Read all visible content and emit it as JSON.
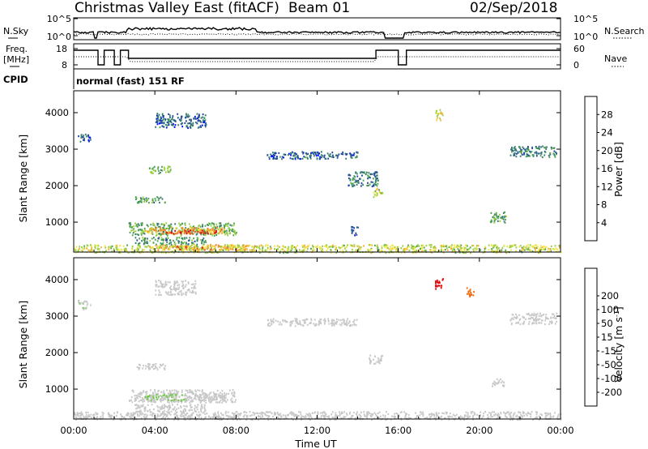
{
  "header": {
    "title": "Christmas Valley East (fitACF)",
    "beam": "Beam 01",
    "date": "02/Sep/2018",
    "cpid_label": "CPID",
    "cpid_value": "normal (fast) 151 RF"
  },
  "noise_panel": {
    "left_label": "N.Sky",
    "right_label": "N.Search",
    "left_ticks": [
      "10^5",
      "10^0"
    ],
    "right_ticks": [
      "10^5",
      "10^0"
    ]
  },
  "freq_panel": {
    "left_label_1": "Freq.",
    "left_label_2": "[MHz]",
    "right_label": "Nave",
    "left_ticks": [
      18,
      8
    ],
    "right_ticks": [
      60,
      0
    ]
  },
  "colors": {
    "power_scale": [
      "#0016ff",
      "#234b9c",
      "#3a7e6e",
      "#4fa651",
      "#9ccf40",
      "#f0e64a",
      "#f5b23a",
      "#f07f2a",
      "#e04a1c",
      "#d10d0d"
    ],
    "velocity_scale": [
      "#e30000",
      "#f06a12",
      "#f5a421",
      "#f6d23b",
      "#c8c8c8",
      "#c8c8c8",
      "#73c84a",
      "#41923c",
      "#1f3f9a",
      "#0b1fb8"
    ]
  },
  "chart_data": [
    {
      "type": "heatmap",
      "name": "power",
      "xlabel": "",
      "ylabel": "Slant Range [km]",
      "x_range": [
        0,
        24
      ],
      "ylim": [
        180,
        4600
      ],
      "y_ticks": [
        1000,
        2000,
        3000,
        4000
      ],
      "colorbar": {
        "label": "Power [dB]",
        "range": [
          0,
          32
        ],
        "ticks": [
          4,
          8,
          12,
          16,
          20,
          24,
          28
        ]
      },
      "regions": [
        {
          "x": [
            0.2,
            0.8
          ],
          "y": [
            3200,
            3450
          ],
          "value": 6
        },
        {
          "x": [
            2.7,
            8.0
          ],
          "y": [
            650,
            1000
          ],
          "value": 12
        },
        {
          "x": [
            3.5,
            7.5
          ],
          "y": [
            700,
            870
          ],
          "value": 22
        },
        {
          "x": [
            4.5,
            7.0
          ],
          "y": [
            700,
            800
          ],
          "value": 28
        },
        {
          "x": [
            3.0,
            6.5
          ],
          "y": [
            400,
            600
          ],
          "value": 10
        },
        {
          "x": [
            4.0,
            9.0
          ],
          "y": [
            250,
            400
          ],
          "value": 22
        },
        {
          "x": [
            5.0,
            6.5
          ],
          "y": [
            260,
            360
          ],
          "value": 28
        },
        {
          "x": [
            0.0,
            24.0
          ],
          "y": [
            180,
            400
          ],
          "value": 16
        },
        {
          "x": [
            3.0,
            4.5
          ],
          "y": [
            1550,
            1720
          ],
          "value": 10
        },
        {
          "x": [
            3.7,
            4.8
          ],
          "y": [
            2350,
            2550
          ],
          "value": 12
        },
        {
          "x": [
            4.0,
            6.5
          ],
          "y": [
            3600,
            4000
          ],
          "value": 6
        },
        {
          "x": [
            9.5,
            14.0
          ],
          "y": [
            2750,
            2950
          ],
          "value": 6
        },
        {
          "x": [
            13.5,
            15.0
          ],
          "y": [
            2000,
            2400
          ],
          "value": 8
        },
        {
          "x": [
            14.7,
            15.2
          ],
          "y": [
            1700,
            1950
          ],
          "value": 16
        },
        {
          "x": [
            17.8,
            18.2
          ],
          "y": [
            3800,
            4100
          ],
          "value": 18
        },
        {
          "x": [
            20.5,
            21.3
          ],
          "y": [
            1000,
            1300
          ],
          "value": 10
        },
        {
          "x": [
            21.5,
            23.8
          ],
          "y": [
            2800,
            3100
          ],
          "value": 8
        },
        {
          "x": [
            13.6,
            14.0
          ],
          "y": [
            650,
            900
          ],
          "value": 6
        }
      ]
    },
    {
      "type": "heatmap",
      "name": "velocity",
      "xlabel": "Time UT",
      "ylabel": "Slant Range [km]",
      "x_range": [
        0,
        24
      ],
      "x_ticks": [
        "00:00",
        "04:00",
        "08:00",
        "12:00",
        "16:00",
        "20:00",
        "00:00"
      ],
      "ylim": [
        180,
        4600
      ],
      "y_ticks": [
        1000,
        2000,
        3000,
        4000
      ],
      "colorbar": {
        "label": "Velocity [m s",
        "label_sup": "-1",
        "label_end": "]",
        "range": [
          -250,
          250
        ],
        "ticks": [
          200,
          100,
          50,
          15,
          -15,
          -50,
          -100,
          -200
        ]
      },
      "regions": [
        {
          "x": [
            0.2,
            0.8
          ],
          "y": [
            3200,
            3450
          ],
          "value": 40
        },
        {
          "x": [
            2.7,
            8.0
          ],
          "y": [
            650,
            1000
          ],
          "value": 0
        },
        {
          "x": [
            3.5,
            5.5
          ],
          "y": [
            700,
            870
          ],
          "value": 60
        },
        {
          "x": [
            5.5,
            7.5
          ],
          "y": [
            700,
            900
          ],
          "value": -30
        },
        {
          "x": [
            3.0,
            6.5
          ],
          "y": [
            400,
            600
          ],
          "value": -20
        },
        {
          "x": [
            0.0,
            24.0
          ],
          "y": [
            180,
            400
          ],
          "value": -20
        },
        {
          "x": [
            3.0,
            4.5
          ],
          "y": [
            1550,
            1720
          ],
          "value": -30
        },
        {
          "x": [
            9.5,
            14.0
          ],
          "y": [
            2750,
            2950
          ],
          "value": 0
        },
        {
          "x": [
            14.5,
            15.2
          ],
          "y": [
            1700,
            1950
          ],
          "value": 0
        },
        {
          "x": [
            17.8,
            18.2
          ],
          "y": [
            3750,
            4050
          ],
          "value": -220
        },
        {
          "x": [
            19.3,
            19.7
          ],
          "y": [
            3550,
            3800
          ],
          "value": -180
        },
        {
          "x": [
            20.5,
            21.2
          ],
          "y": [
            1100,
            1300
          ],
          "value": 0
        },
        {
          "x": [
            21.5,
            23.8
          ],
          "y": [
            2800,
            3100
          ],
          "value": 0
        },
        {
          "x": [
            4.0,
            6.0
          ],
          "y": [
            3600,
            4000
          ],
          "value": 0
        }
      ]
    }
  ]
}
